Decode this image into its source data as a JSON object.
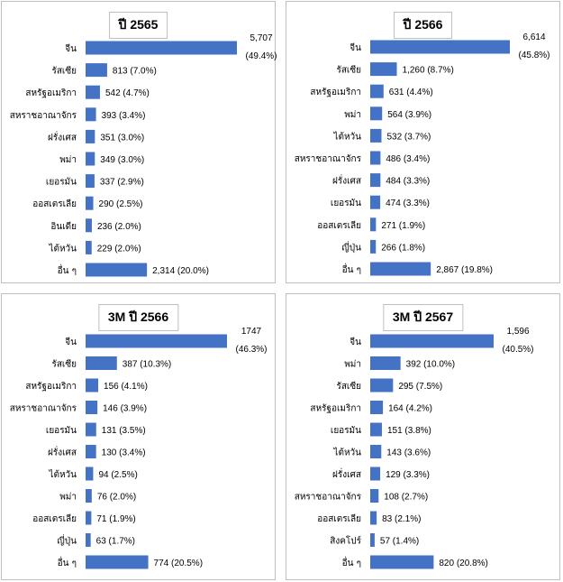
{
  "colors": {
    "bar": "#4472C4",
    "panel_border": "#bfbfbf",
    "text": "#000000"
  },
  "chart_data": [
    {
      "type": "bar",
      "orientation": "horizontal",
      "title": "ปี 2565",
      "categories": [
        "จีน",
        "รัสเซีย",
        "สหรัฐอเมริกา",
        "สหราชอาณาจักร",
        "ฝรั่งเศส",
        "พม่า",
        "เยอรมัน",
        "ออสเตรเลีย",
        "อินเดีย",
        "ไต้หวัน",
        "อื่น ๆ"
      ],
      "values": [
        5707,
        813,
        542,
        393,
        351,
        349,
        337,
        290,
        236,
        229,
        2314
      ],
      "labels": [
        "5,707 (49.4%)",
        "813 (7.0%)",
        "542 (4.7%)",
        "393 (3.4%)",
        "351 (3.0%)",
        "349 (3.0%)",
        "337 (2.9%)",
        "290 (2.5%)",
        "236 (2.0%)",
        "229 (2.0%)",
        "2,314 (20.0%)"
      ]
    },
    {
      "type": "bar",
      "orientation": "horizontal",
      "title": "ปี 2566",
      "categories": [
        "จีน",
        "รัสเซีย",
        "สหรัฐอเมริกา",
        "พม่า",
        "ไต้หวัน",
        "สหราชอาณาจักร",
        "ฝรั่งเศส",
        "เยอรมัน",
        "ออสเตรเลีย",
        "ญี่ปุ่น",
        "อื่น ๆ"
      ],
      "values": [
        6614,
        1260,
        631,
        564,
        532,
        486,
        484,
        474,
        271,
        266,
        2867
      ],
      "labels": [
        "6,614 (45.8%)",
        "1,260 (8.7%)",
        "631 (4.4%)",
        "564 (3.9%)",
        "532 (3.7%)",
        "486 (3.4%)",
        "484 (3.3%)",
        "474 (3.3%)",
        "271 (1.9%)",
        "266 (1.8%)",
        "2,867 (19.8%)"
      ]
    },
    {
      "type": "bar",
      "orientation": "horizontal",
      "title": "3M ปี 2566",
      "categories": [
        "จีน",
        "รัสเซีย",
        "สหรัฐอเมริกา",
        "สหราชอาณาจักร",
        "เยอรมัน",
        "ฝรั่งเศส",
        "ไต้หวัน",
        "พม่า",
        "ออสเตรเลีย",
        "ญี่ปุ่น",
        "อื่น ๆ"
      ],
      "values": [
        1747,
        387,
        156,
        146,
        131,
        130,
        94,
        76,
        71,
        63,
        774
      ],
      "labels": [
        "1747 (46.3%)",
        "387 (10.3%)",
        "156 (4.1%)",
        "146 (3.9%)",
        "131 (3.5%)",
        "130 (3.4%)",
        "94 (2.5%)",
        "76 (2.0%)",
        "71 (1.9%)",
        "63 (1.7%)",
        "774 (20.5%)"
      ]
    },
    {
      "type": "bar",
      "orientation": "horizontal",
      "title": "3M ปี 2567",
      "categories": [
        "จีน",
        "พม่า",
        "รัสเซีย",
        "สหรัฐอเมริกา",
        "เยอรมัน",
        "ไต้หวัน",
        "ฝรั่งเศส",
        "สหราชอาณาจักร",
        "ออสเตรเลีย",
        "สิงคโปร์",
        "อื่น ๆ"
      ],
      "values": [
        1596,
        392,
        295,
        164,
        151,
        143,
        129,
        108,
        83,
        57,
        820
      ],
      "labels": [
        "1,596 (40.5%)",
        "392 (10.0%)",
        "295 (7.5%)",
        "164 (4.2%)",
        "151 (3.8%)",
        "143 (3.6%)",
        "129 (3.3%)",
        "108 (2.7%)",
        "83 (2.1%)",
        "57 (1.4%)",
        "820 (20.8%)"
      ]
    }
  ]
}
